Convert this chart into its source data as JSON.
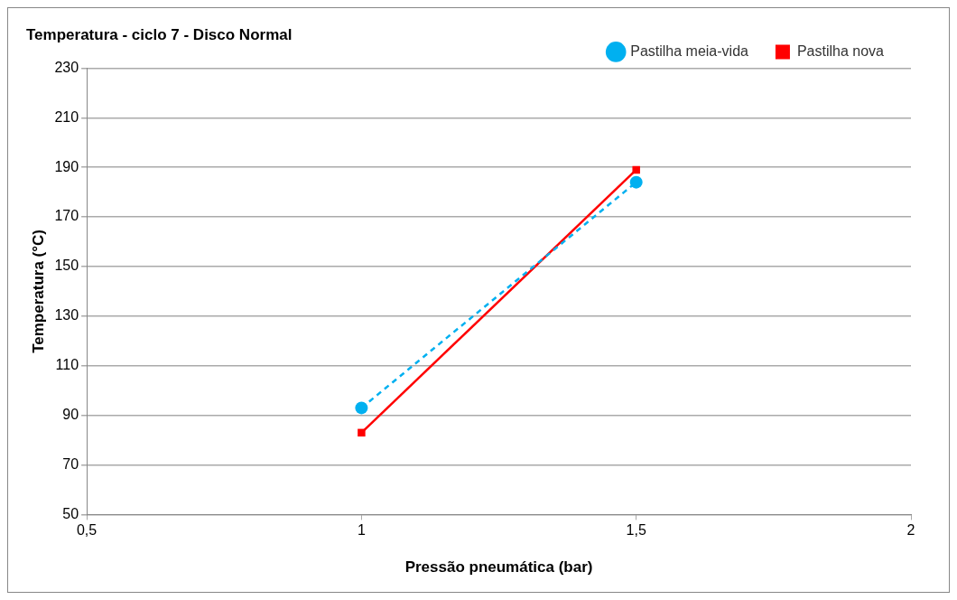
{
  "chart_data": {
    "type": "line",
    "title": "Temperatura - ciclo 7 - Disco Normal",
    "xlabel": "Pressão pneumática (bar)",
    "ylabel": "Temperatura (°C)",
    "x": [
      1,
      1.5
    ],
    "series": [
      {
        "name": "Pastilha meia-vida",
        "color": "#00b0f0",
        "values": [
          93,
          184
        ],
        "marker": "circle",
        "line_style": "dashed"
      },
      {
        "name": "Pastilha nova",
        "color": "#ff0000",
        "values": [
          83,
          189
        ],
        "marker": "square",
        "line_style": "solid"
      }
    ],
    "xlim": [
      0.5,
      2
    ],
    "xticks": [
      {
        "value": 0.5,
        "label": "0,5"
      },
      1,
      {
        "value": 1.5,
        "label": "1,5"
      },
      2
    ],
    "ylim": [
      50,
      230
    ],
    "yticks": [
      50,
      70,
      90,
      110,
      130,
      150,
      170,
      190,
      210,
      230
    ],
    "grid": "y",
    "legend": "top right"
  }
}
